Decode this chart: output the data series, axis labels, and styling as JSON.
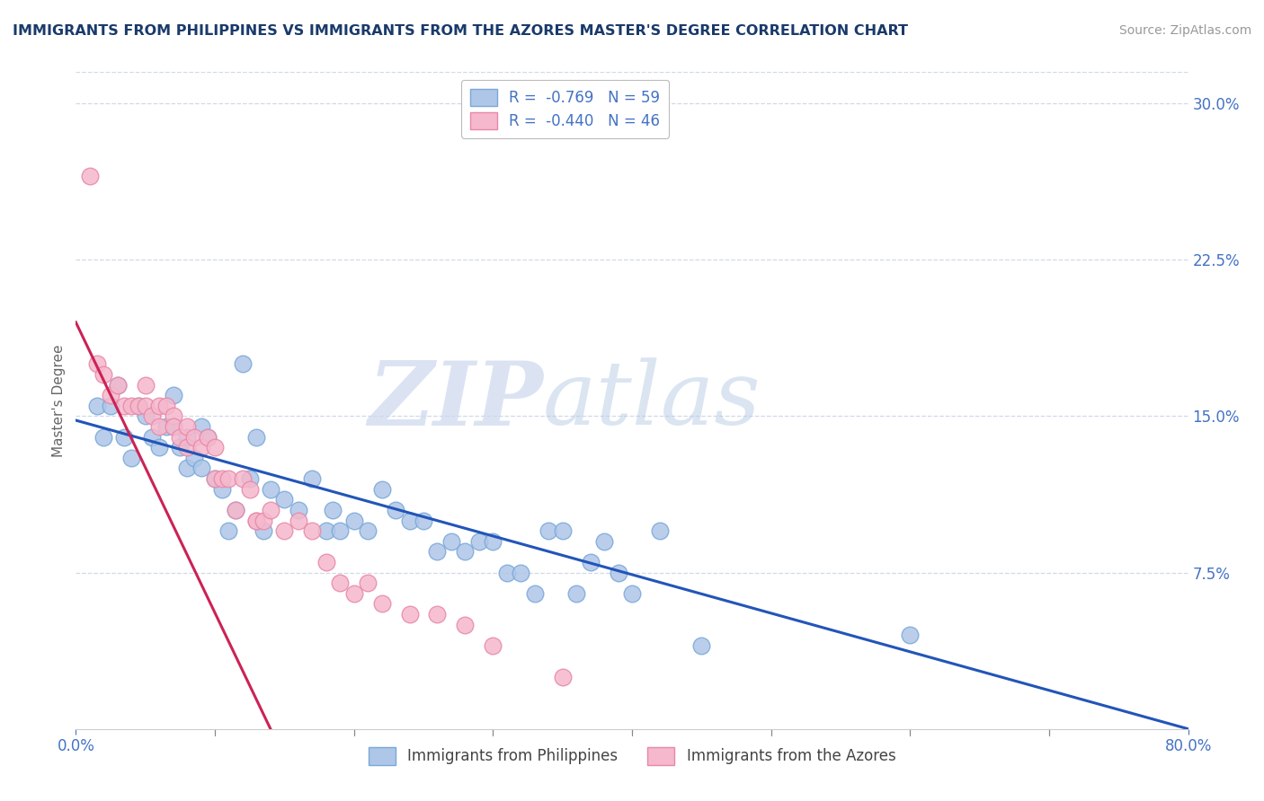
{
  "title": "IMMIGRANTS FROM PHILIPPINES VS IMMIGRANTS FROM THE AZORES MASTER'S DEGREE CORRELATION CHART",
  "source": "Source: ZipAtlas.com",
  "ylabel": "Master's Degree",
  "xlim": [
    0.0,
    80.0
  ],
  "ylim": [
    0.0,
    0.315
  ],
  "x_tick_vals": [
    0,
    10,
    20,
    30,
    40,
    50,
    60,
    70,
    80
  ],
  "x_tick_labels": [
    "0.0%",
    "",
    "",
    "",
    "",
    "",
    "",
    "",
    "80.0%"
  ],
  "y_tick_vals": [
    0.0,
    0.075,
    0.15,
    0.225,
    0.3
  ],
  "y_tick_labels": [
    "",
    "7.5%",
    "15.0%",
    "22.5%",
    "30.0%"
  ],
  "legend_r1": "R =  -0.769   N = 59",
  "legend_r2": "R =  -0.440   N = 46",
  "legend_label_philippines": "Immigrants from Philippines",
  "legend_label_azores": "Immigrants from the Azores",
  "watermark_zip": "ZIP",
  "watermark_atlas": "atlas",
  "blue_scatter_x": [
    1.5,
    2.0,
    2.5,
    3.0,
    3.5,
    4.0,
    4.5,
    5.0,
    5.5,
    6.0,
    6.5,
    7.0,
    7.0,
    7.5,
    8.0,
    8.0,
    8.5,
    9.0,
    9.0,
    9.5,
    10.0,
    10.5,
    11.0,
    11.5,
    12.0,
    12.5,
    13.0,
    13.5,
    14.0,
    15.0,
    16.0,
    17.0,
    18.0,
    18.5,
    19.0,
    20.0,
    21.0,
    22.0,
    23.0,
    24.0,
    25.0,
    26.0,
    27.0,
    28.0,
    29.0,
    30.0,
    31.0,
    32.0,
    33.0,
    34.0,
    35.0,
    36.0,
    37.0,
    38.0,
    39.0,
    40.0,
    42.0,
    45.0,
    60.0
  ],
  "blue_scatter_y": [
    0.155,
    0.14,
    0.155,
    0.165,
    0.14,
    0.13,
    0.155,
    0.15,
    0.14,
    0.135,
    0.145,
    0.145,
    0.16,
    0.135,
    0.125,
    0.14,
    0.13,
    0.125,
    0.145,
    0.14,
    0.12,
    0.115,
    0.095,
    0.105,
    0.175,
    0.12,
    0.14,
    0.095,
    0.115,
    0.11,
    0.105,
    0.12,
    0.095,
    0.105,
    0.095,
    0.1,
    0.095,
    0.115,
    0.105,
    0.1,
    0.1,
    0.085,
    0.09,
    0.085,
    0.09,
    0.09,
    0.075,
    0.075,
    0.065,
    0.095,
    0.095,
    0.065,
    0.08,
    0.09,
    0.075,
    0.065,
    0.095,
    0.04,
    0.045
  ],
  "pink_scatter_x": [
    1.0,
    1.5,
    2.0,
    2.5,
    3.0,
    3.5,
    4.0,
    4.5,
    5.0,
    5.0,
    5.5,
    6.0,
    6.0,
    6.5,
    7.0,
    7.0,
    7.5,
    8.0,
    8.0,
    8.5,
    9.0,
    9.5,
    10.0,
    10.0,
    10.5,
    11.0,
    11.5,
    12.0,
    12.5,
    13.0,
    13.0,
    13.5,
    14.0,
    15.0,
    16.0,
    17.0,
    18.0,
    19.0,
    20.0,
    21.0,
    22.0,
    24.0,
    26.0,
    28.0,
    30.0,
    35.0
  ],
  "pink_scatter_y": [
    0.265,
    0.175,
    0.17,
    0.16,
    0.165,
    0.155,
    0.155,
    0.155,
    0.165,
    0.155,
    0.15,
    0.155,
    0.145,
    0.155,
    0.15,
    0.145,
    0.14,
    0.145,
    0.135,
    0.14,
    0.135,
    0.14,
    0.135,
    0.12,
    0.12,
    0.12,
    0.105,
    0.12,
    0.115,
    0.1,
    0.1,
    0.1,
    0.105,
    0.095,
    0.1,
    0.095,
    0.08,
    0.07,
    0.065,
    0.07,
    0.06,
    0.055,
    0.055,
    0.05,
    0.04,
    0.025
  ],
  "blue_line_x0": 0,
  "blue_line_x1": 80,
  "blue_line_y0": 0.148,
  "blue_line_y1": 0.0,
  "pink_line_x0": 0,
  "pink_line_x1": 14,
  "pink_line_y0": 0.195,
  "pink_line_y1": 0.0,
  "background_color": "#ffffff",
  "grid_color": "#d0d8e8",
  "title_color": "#1a3a6b",
  "axis_color": "#4472c4",
  "scatter_blue_face": "#aec6e8",
  "scatter_blue_edge": "#7aa8d8",
  "scatter_pink_face": "#f5b8cc",
  "scatter_pink_edge": "#e888a8",
  "trend_blue": "#2255b8",
  "trend_pink": "#cc2255"
}
